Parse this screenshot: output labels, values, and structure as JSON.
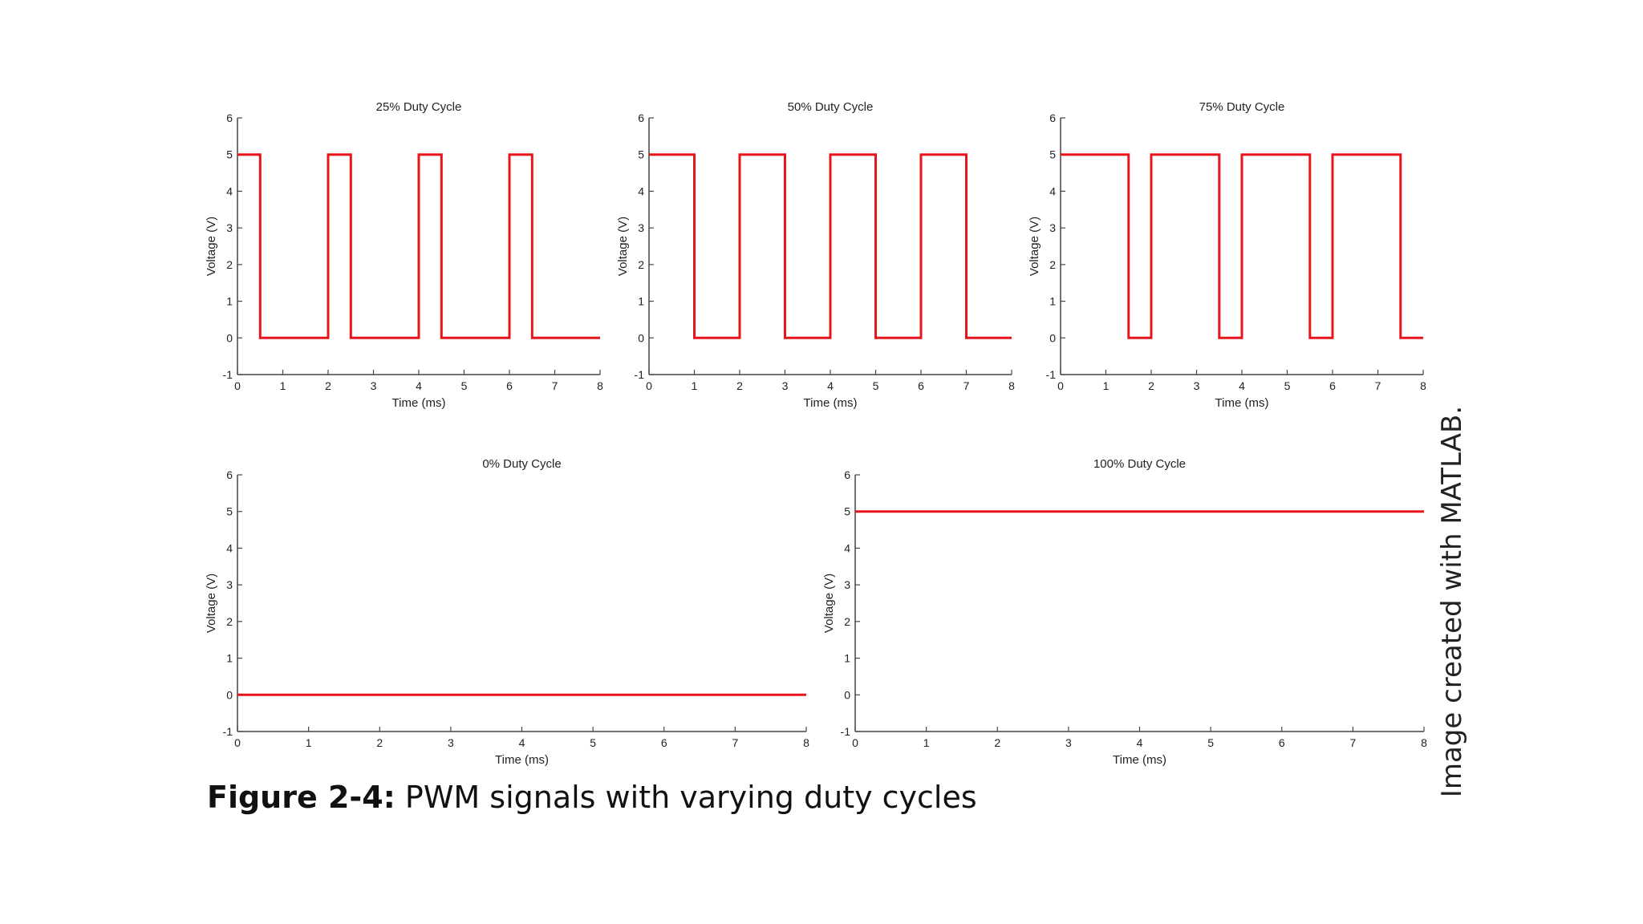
{
  "caption": {
    "label": "Figure 2-4:",
    "text": "PWM signals with varying duty cycles"
  },
  "credit": "Image created with MATLAB.",
  "colors": {
    "signal": "#e8141b",
    "axis": "#444444",
    "text": "#222222"
  },
  "chart_data": [
    {
      "type": "line",
      "title": "25% Duty Cycle",
      "xlabel": "Time (ms)",
      "ylabel": "Voltage (V)",
      "xlim": [
        0,
        8
      ],
      "ylim": [
        -1,
        6
      ],
      "xticks": [
        0,
        1,
        2,
        3,
        4,
        5,
        6,
        7,
        8
      ],
      "yticks": [
        -1,
        0,
        1,
        2,
        3,
        4,
        5,
        6
      ],
      "grid": false,
      "series": [
        {
          "x": [
            0,
            0.5,
            0.5,
            2,
            2,
            2.5,
            2.5,
            4,
            4,
            4.5,
            4.5,
            6,
            6,
            6.5,
            6.5,
            8
          ],
          "y": [
            5,
            5,
            0,
            0,
            5,
            5,
            0,
            0,
            5,
            5,
            0,
            0,
            5,
            5,
            0,
            0
          ]
        }
      ]
    },
    {
      "type": "line",
      "title": "50% Duty Cycle",
      "xlabel": "Time (ms)",
      "ylabel": "Voltage (V)",
      "xlim": [
        0,
        8
      ],
      "ylim": [
        -1,
        6
      ],
      "xticks": [
        0,
        1,
        2,
        3,
        4,
        5,
        6,
        7,
        8
      ],
      "yticks": [
        -1,
        0,
        1,
        2,
        3,
        4,
        5,
        6
      ],
      "grid": false,
      "series": [
        {
          "x": [
            0,
            1,
            1,
            2,
            2,
            3,
            3,
            4,
            4,
            5,
            5,
            6,
            6,
            7,
            7,
            8
          ],
          "y": [
            5,
            5,
            0,
            0,
            5,
            5,
            0,
            0,
            5,
            5,
            0,
            0,
            5,
            5,
            0,
            0
          ]
        }
      ]
    },
    {
      "type": "line",
      "title": "75% Duty Cycle",
      "xlabel": "Time (ms)",
      "ylabel": "Voltage (V)",
      "xlim": [
        0,
        8
      ],
      "ylim": [
        -1,
        6
      ],
      "xticks": [
        0,
        1,
        2,
        3,
        4,
        5,
        6,
        7,
        8
      ],
      "yticks": [
        -1,
        0,
        1,
        2,
        3,
        4,
        5,
        6
      ],
      "grid": false,
      "series": [
        {
          "x": [
            0,
            1.5,
            1.5,
            2,
            2,
            3.5,
            3.5,
            4,
            4,
            5.5,
            5.5,
            6,
            6,
            7.5,
            7.5,
            8
          ],
          "y": [
            5,
            5,
            0,
            0,
            5,
            5,
            0,
            0,
            5,
            5,
            0,
            0,
            5,
            5,
            0,
            0
          ]
        }
      ]
    },
    {
      "type": "line",
      "title": "0% Duty Cycle",
      "xlabel": "Time (ms)",
      "ylabel": "Voltage (V)",
      "xlim": [
        0,
        8
      ],
      "ylim": [
        -1,
        6
      ],
      "xticks": [
        0,
        1,
        2,
        3,
        4,
        5,
        6,
        7,
        8
      ],
      "yticks": [
        -1,
        0,
        1,
        2,
        3,
        4,
        5,
        6
      ],
      "grid": false,
      "series": [
        {
          "x": [
            0,
            8
          ],
          "y": [
            0,
            0
          ]
        }
      ]
    },
    {
      "type": "line",
      "title": "100% Duty Cycle",
      "xlabel": "Time (ms)",
      "ylabel": "Voltage (V)",
      "xlim": [
        0,
        8
      ],
      "ylim": [
        -1,
        6
      ],
      "xticks": [
        0,
        1,
        2,
        3,
        4,
        5,
        6,
        7,
        8
      ],
      "yticks": [
        -1,
        0,
        1,
        2,
        3,
        4,
        5,
        6
      ],
      "grid": false,
      "series": [
        {
          "x": [
            0,
            8
          ],
          "y": [
            5,
            5
          ]
        }
      ]
    }
  ]
}
